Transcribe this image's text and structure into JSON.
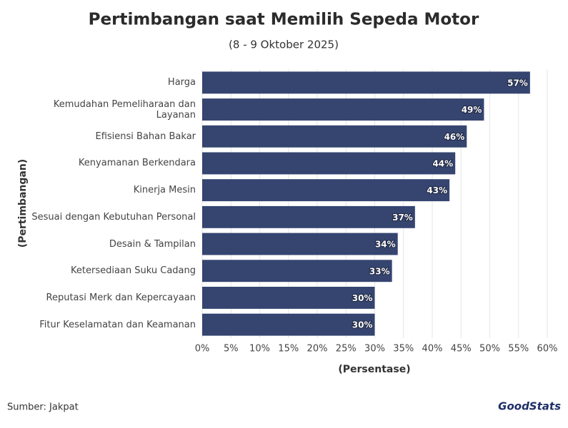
{
  "chart_data": {
    "type": "bar",
    "orientation": "horizontal",
    "title": "Pertimbangan saat Memilih Sepeda Motor",
    "subtitle": "(8 - 9 Oktober 2025)",
    "x_label": "(Persentase)",
    "y_label": "(Pertimbangan)",
    "categories": [
      "Harga",
      "Kemudahan Pemeliharaan dan Layanan",
      "Efisiensi Bahan Bakar",
      "Kenyamanan Berkendara",
      "Kinerja Mesin",
      "Sesuai dengan Kebutuhan Personal",
      "Desain & Tampilan",
      "Ketersediaan Suku Cadang",
      "Reputasi Merk dan Kepercayaan",
      "Fitur Keselamatan dan Keamanan"
    ],
    "values": [
      57,
      49,
      46,
      44,
      43,
      37,
      34,
      33,
      30,
      30
    ],
    "value_labels": [
      "57%",
      "49%",
      "46%",
      "44%",
      "43%",
      "37%",
      "34%",
      "33%",
      "30%",
      "30%"
    ],
    "color": "#354570",
    "xlim": [
      0,
      60
    ],
    "xticks": [
      {
        "value": 0,
        "label": "0%"
      },
      {
        "value": 5,
        "label": "5%"
      },
      {
        "value": 10,
        "label": "10%"
      },
      {
        "value": 15,
        "label": "15%"
      },
      {
        "value": 20,
        "label": "20%"
      },
      {
        "value": 25,
        "label": "25%"
      },
      {
        "value": 30,
        "label": "30%"
      },
      {
        "value": 35,
        "label": "35%"
      },
      {
        "value": 40,
        "label": "40%"
      },
      {
        "value": 45,
        "label": "45%"
      },
      {
        "value": 50,
        "label": "50%"
      },
      {
        "value": 55,
        "label": "55%"
      },
      {
        "value": 60,
        "label": "60%"
      }
    ],
    "grid": true,
    "source": "Sumber: Jakpat",
    "logo": "GoodStats"
  }
}
